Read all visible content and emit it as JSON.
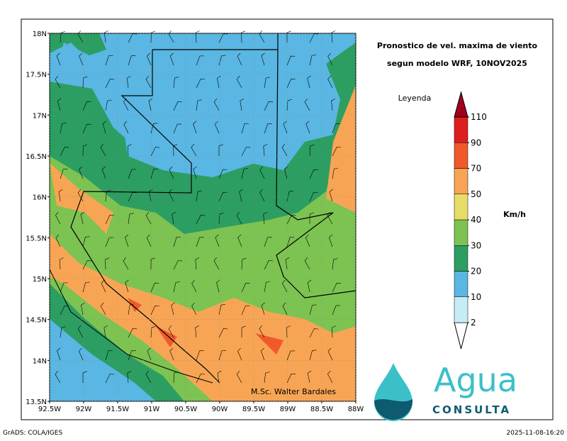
{
  "header": {
    "title_lines": [
      "Pronostico de vel. maxima de viento",
      "segun modelo WRF, 10NOV2025"
    ]
  },
  "map": {
    "lat_labels": [
      "18N",
      "17.5N",
      "17N",
      "16.5N",
      "16N",
      "15.5N",
      "15N",
      "14.5N",
      "14N",
      "13.5N"
    ],
    "lon_labels": [
      "92.5W",
      "92W",
      "91.5W",
      "91W",
      "90.5W",
      "90W",
      "89.5W",
      "89W",
      "88.5W",
      "88W"
    ],
    "credit": "M.Sc. Walter Bardales"
  },
  "legend": {
    "title": "Leyenda",
    "unit": "Km/h",
    "levels": [
      2,
      10,
      20,
      30,
      40,
      50,
      70,
      90,
      110
    ],
    "colors": [
      "#ffffff",
      "#c6ecf8",
      "#5ab6e2",
      "#2c9e62",
      "#7cc352",
      "#e8dc68",
      "#f7a554",
      "#f05a2a",
      "#dc1e1e",
      "#a0001e"
    ]
  },
  "logo": {
    "word": "Agua",
    "subword": "CONSULTA"
  },
  "footer": {
    "left": "GrADS: COLA/IGES",
    "right": "2025-11-08-16:20"
  }
}
